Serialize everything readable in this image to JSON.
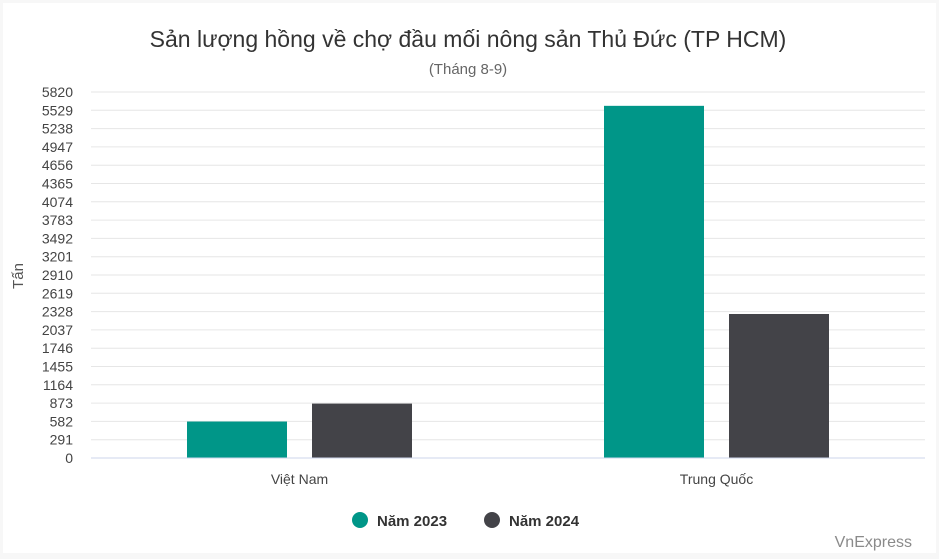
{
  "chart_data": {
    "type": "bar",
    "title": "Sản lượng hồng về chợ đầu mối nông sản Thủ Đức (TP HCM)",
    "subtitle": "(Tháng 8-9)",
    "ylabel": "Tấn",
    "xlabel": "",
    "categories": [
      "Việt Nam",
      "Trung Quốc"
    ],
    "series": [
      {
        "name": "Năm 2023",
        "color": "#009688",
        "values": [
          580,
          5600
        ]
      },
      {
        "name": "Năm 2024",
        "color": "#434348",
        "values": [
          865,
          2290
        ]
      }
    ],
    "ylim": [
      0,
      5820
    ],
    "yticks": [
      0,
      291,
      582,
      873,
      1164,
      1455,
      1746,
      2037,
      2328,
      2619,
      2910,
      3201,
      3492,
      3783,
      4074,
      4365,
      4656,
      4947,
      5238,
      5529,
      5820
    ],
    "grid": true,
    "legend": "bottom-center"
  },
  "credit": "VnExpress"
}
